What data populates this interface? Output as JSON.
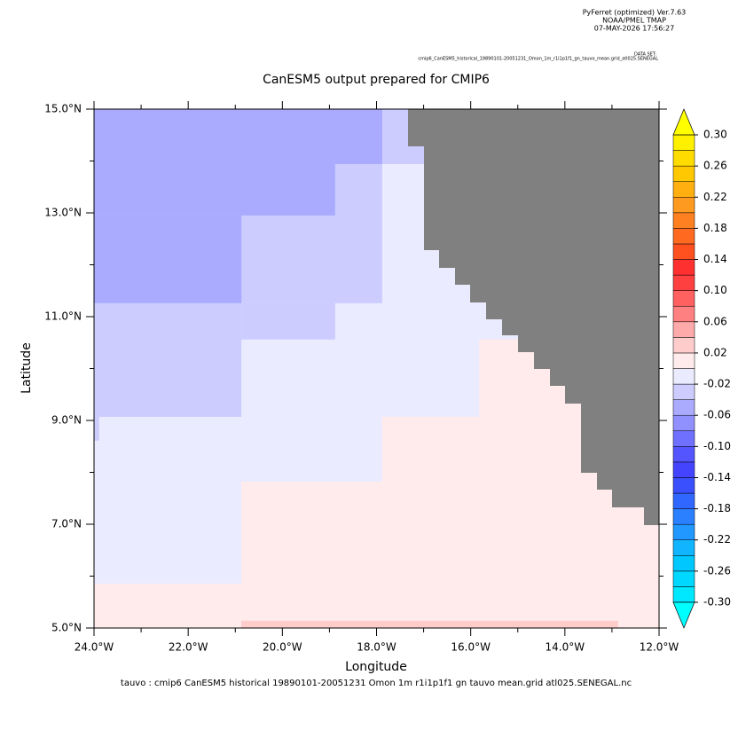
{
  "header": {
    "software": "PyFerret (optimized) Ver.7.63",
    "org": "NOAA/PMEL TMAP",
    "date": "07-MAY-2026 17:56:27",
    "dataset_label": "DATA SET:",
    "dataset": "cmip6_CanESM5_historical_19890101-20051231_Omon_1m_r1i1p1f1_gn_tauvo_mean.grid_atl025.SENEGAL"
  },
  "footer": "tauvo : cmip6 CanESM5 historical 19890101-20051231 Omon 1m r1i1p1f1 gn tauvo mean.grid atl025.SENEGAL.nc",
  "chart_data": {
    "type": "heatmap",
    "title": "CanESM5 output prepared for CMIP6",
    "x_label": "Longitude",
    "y_label": "Latitude",
    "xlim": [
      -24,
      -12
    ],
    "ylim": [
      5,
      15
    ],
    "xticks": [
      {
        "value": -24,
        "label": "24.0°W"
      },
      {
        "value": -22,
        "label": "22.0°W"
      },
      {
        "value": -20,
        "label": "20.0°W"
      },
      {
        "value": -18,
        "label": "18.0°W"
      },
      {
        "value": -16,
        "label": "16.0°W"
      },
      {
        "value": -14,
        "label": "14.0°W"
      },
      {
        "value": -12,
        "label": "12.0°W"
      }
    ],
    "yticks": [
      {
        "value": 5,
        "label": "5.0°N"
      },
      {
        "value": 7,
        "label": "7.0°N"
      },
      {
        "value": 9,
        "label": "9.0°N"
      },
      {
        "value": 11,
        "label": "11.0°N"
      },
      {
        "value": 13,
        "label": "13.0°N"
      },
      {
        "value": 15,
        "label": "15.0°N"
      }
    ],
    "xminor_ticks": [
      -23,
      -21,
      -19,
      -17,
      -15,
      -13
    ],
    "yminor_ticks": [
      6,
      8,
      10,
      12,
      14
    ],
    "land_color": "#808080",
    "cells": [
      {
        "lon": [
          -24,
          -12
        ],
        "lat": [
          5,
          15
        ],
        "value": -0.01
      },
      {
        "lon": [
          -24,
          -16.99
        ],
        "lat": [
          13.94,
          15
        ],
        "value": -0.03
      },
      {
        "lon": [
          -24,
          -17.88
        ],
        "lat": [
          11.26,
          13.94
        ],
        "value": -0.03
      },
      {
        "lon": [
          -24,
          -20.87
        ],
        "lat": [
          9.07,
          11.26
        ],
        "value": -0.03
      },
      {
        "lon": [
          -24,
          -23.89
        ],
        "lat": [
          8.61,
          9.07
        ],
        "value": -0.03
      },
      {
        "lon": [
          -20.87,
          -18.88
        ],
        "lat": [
          10.56,
          11.26
        ],
        "value": -0.03
      },
      {
        "lon": [
          -24,
          -17.88
        ],
        "lat": [
          13.94,
          15
        ],
        "value": -0.05
      },
      {
        "lon": [
          -24,
          -18.88
        ],
        "lat": [
          12.95,
          13.94
        ],
        "value": -0.05
      },
      {
        "lon": [
          -24,
          -20.87
        ],
        "lat": [
          11.26,
          12.95
        ],
        "value": -0.05
      },
      {
        "lon": [
          -24,
          -20.87
        ],
        "lat": [
          5,
          5.85
        ],
        "value": 0.01
      },
      {
        "lon": [
          -20.87,
          -12
        ],
        "lat": [
          5,
          7.82
        ],
        "value": 0.01
      },
      {
        "lon": [
          -17.88,
          -12
        ],
        "lat": [
          7.82,
          9.07
        ],
        "value": 0.01
      },
      {
        "lon": [
          -15.82,
          -12
        ],
        "lat": [
          9.07,
          10.56
        ],
        "value": 0.01
      },
      {
        "lon": [
          -20.87,
          -12.87
        ],
        "lat": [
          5,
          5.14
        ],
        "value": 0.03
      }
    ],
    "colorbar": {
      "lim": [
        -0.3,
        0.3
      ],
      "colors": [
        "#00e8ff",
        "#00d8ff",
        "#00c8ff",
        "#10b4ff",
        "#2098ff",
        "#2a80ff",
        "#3068ff",
        "#3a50ff",
        "#4444ff",
        "#5555ff",
        "#7070ff",
        "#9090ff",
        "#aaaaff",
        "#ccccff",
        "#ebebff",
        "#ffebeb",
        "#ffcccc",
        "#ffaaaa",
        "#ff8080",
        "#ff6060",
        "#ff4040",
        "#ff3030",
        "#ff5020",
        "#ff6a20",
        "#ff8020",
        "#ff9a20",
        "#ffb010",
        "#ffc800",
        "#ffdc00",
        "#fff000"
      ],
      "under_color": "#00ffff",
      "over_color": "#ffff00",
      "ticks": [
        {
          "value": 0.3,
          "label": "0.30"
        },
        0.26,
        0.22,
        0.18,
        0.14,
        {
          "value": 0.1,
          "label": "0.10"
        },
        0.06,
        0.02,
        -0.02,
        -0.06,
        {
          "value": -0.1,
          "label": "-0.10"
        },
        -0.14,
        -0.18,
        -0.22,
        -0.26,
        {
          "value": -0.3,
          "label": "-0.30"
        }
      ]
    }
  }
}
